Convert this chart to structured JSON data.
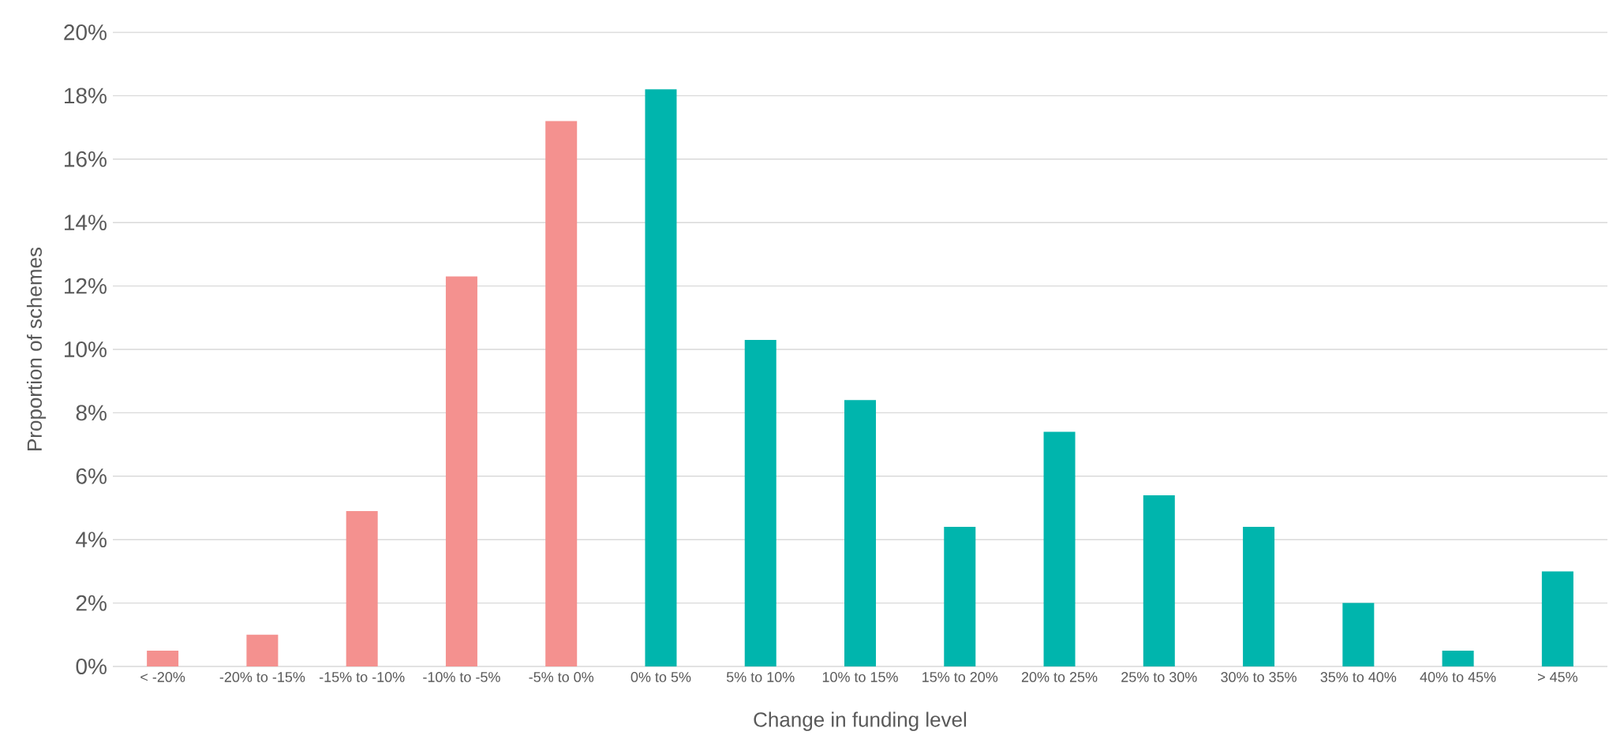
{
  "chart_data": {
    "type": "bar",
    "xlabel": "Change in funding level",
    "ylabel": "Proportion of schemes",
    "categories": [
      "< -20%",
      "-20% to -15%",
      "-15% to -10%",
      "-10% to -5%",
      "-5% to 0%",
      "0% to 5%",
      "5% to 10%",
      "10% to 15%",
      "15% to 20%",
      "20% to 25%",
      "25% to 30%",
      "30% to 35%",
      "35% to 40%",
      "40% to 45%",
      "> 45%"
    ],
    "values": [
      0.5,
      1.0,
      4.9,
      12.3,
      17.2,
      18.2,
      10.3,
      8.4,
      4.4,
      7.4,
      5.4,
      4.4,
      2.0,
      0.5,
      3.0
    ],
    "colors": [
      "#f4918f",
      "#f4918f",
      "#f4918f",
      "#f4918f",
      "#f4918f",
      "#00b5ad",
      "#00b5ad",
      "#00b5ad",
      "#00b5ad",
      "#00b5ad",
      "#00b5ad",
      "#00b5ad",
      "#00b5ad",
      "#00b5ad",
      "#00b5ad"
    ],
    "ylim": [
      0,
      20
    ],
    "yticks": [
      {
        "value": 0,
        "label": "0%"
      },
      {
        "value": 2,
        "label": "2%"
      },
      {
        "value": 4,
        "label": "4%"
      },
      {
        "value": 6,
        "label": "6%"
      },
      {
        "value": 8,
        "label": "8%"
      },
      {
        "value": 10,
        "label": "10%"
      },
      {
        "value": 12,
        "label": "12%"
      },
      {
        "value": 14,
        "label": "14%"
      },
      {
        "value": 16,
        "label": "16%"
      },
      {
        "value": 18,
        "label": "18%"
      },
      {
        "value": 20,
        "label": "20%"
      }
    ],
    "grid": "y"
  }
}
